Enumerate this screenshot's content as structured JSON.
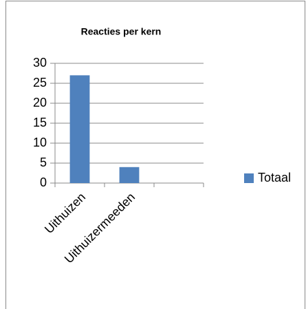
{
  "chart_data": {
    "type": "bar",
    "title": "Reacties per kern",
    "categories": [
      "Uithuizen",
      "Uithuizermeeden",
      null
    ],
    "series": [
      {
        "name": "Totaal",
        "color": "#4f81bd",
        "values": [
          27,
          4,
          null
        ]
      }
    ],
    "ylim": [
      0,
      30
    ],
    "yticks": [
      0,
      5,
      10,
      15,
      20,
      25,
      30
    ],
    "grid": true,
    "legend": "right"
  }
}
